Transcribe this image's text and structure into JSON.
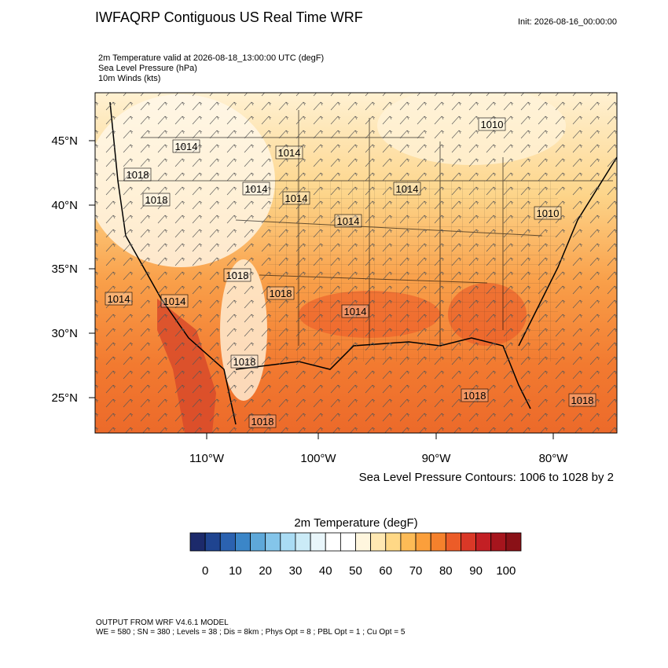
{
  "header": {
    "title": "IWFAQRP Contiguous US Real Time WRF",
    "init": "Init: 2026-08-16_00:00:00"
  },
  "fields": [
    "2m Temperature valid at 2026-08-18_13:00:00 UTC   (degF)",
    "Sea Level Pressure   (hPa)",
    "10m Winds   (kts)"
  ],
  "map": {
    "lat_labels": [
      "45°N",
      "40°N",
      "35°N",
      "30°N",
      "25°N"
    ],
    "lon_labels": [
      "110°W",
      "100°W",
      "90°W",
      "80°W"
    ],
    "contour_labels": [
      "1010",
      "1014",
      "1014",
      "1018",
      "1018",
      "1014",
      "1014",
      "1014",
      "1014",
      "1010",
      "1018",
      "1018",
      "1014",
      "1014",
      "1014",
      "1018",
      "1018",
      "1018",
      "1018"
    ],
    "contour_note": "Sea Level Pressure Contours: 1006 to 1028 by 2"
  },
  "colorbar": {
    "title": "2m Temperature  (degF)",
    "colors": [
      "#1c2a6b",
      "#1f4490",
      "#2b62b0",
      "#3b86c8",
      "#5ea8d9",
      "#84c5ea",
      "#aadcf4",
      "#cbebf7",
      "#e9f6fb",
      "#ffffff",
      "#ffffff",
      "#fff6de",
      "#ffe8b2",
      "#ffd886",
      "#fdbb56",
      "#fb9f3b",
      "#f5812c",
      "#ec5c28",
      "#da3827",
      "#c31f24",
      "#a6151d",
      "#8a1117"
    ],
    "labels": [
      "0",
      "10",
      "20",
      "30",
      "40",
      "50",
      "60",
      "70",
      "80",
      "90",
      "100"
    ]
  },
  "footer": [
    "OUTPUT FROM WRF V4.6.1 MODEL",
    "WE = 580 ; SN = 380 ; Levels = 38 ; Dis = 8km ; Phys Opt = 8 ; PBL Opt = 1 ; Cu Opt = 5"
  ]
}
